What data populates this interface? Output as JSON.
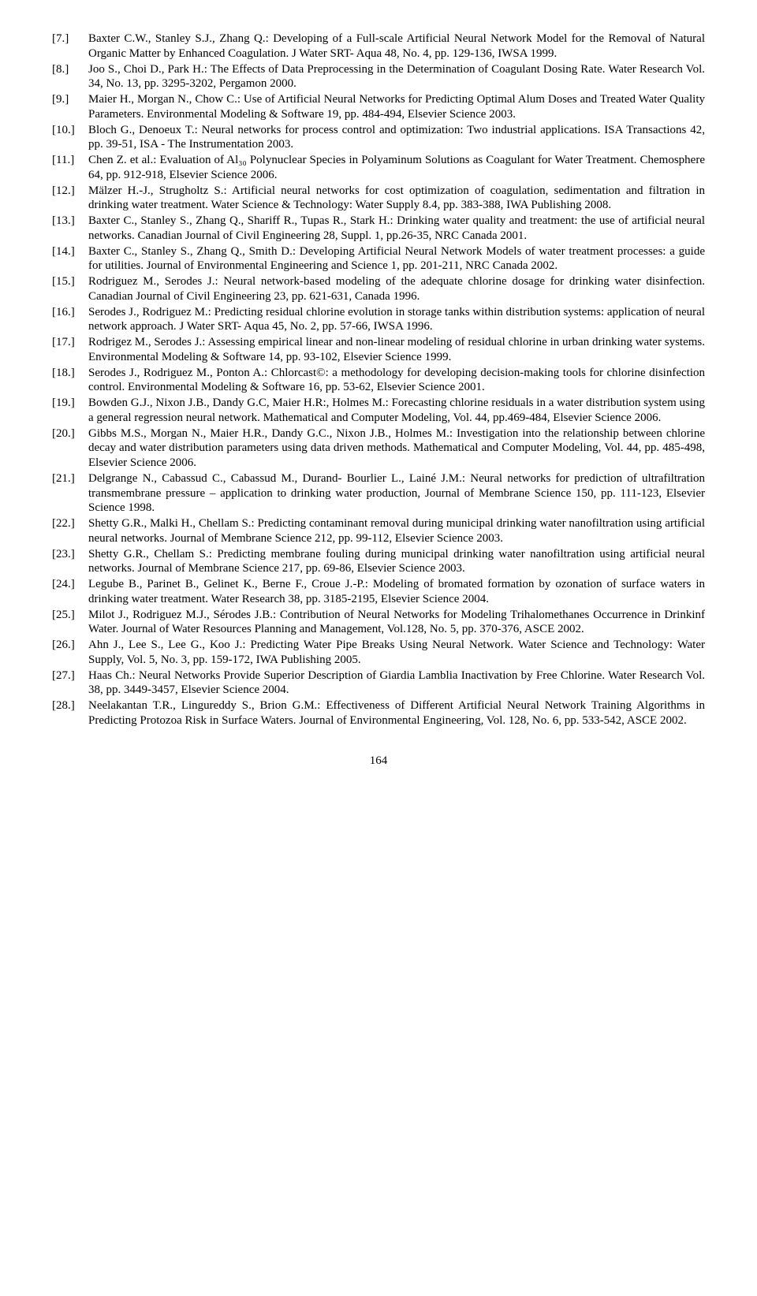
{
  "references": [
    {
      "num": "[7.]",
      "body": "Baxter C.W., Stanley S.J., Zhang Q.: Developing of a Full-scale Artificial Neural Network Model for the Removal of Natural Organic Matter by Enhanced Coagulation. J Water SRT- Aqua 48, No. 4, pp. 129-136, IWSA 1999."
    },
    {
      "num": "[8.]",
      "body": "Joo S., Choi D., Park H.: The Effects of Data Preprocessing in the Determination of Coagulant Dosing Rate. Water Research Vol. 34, No. 13, pp. 3295-3202, Pergamon 2000."
    },
    {
      "num": "[9.]",
      "body": "Maier H., Morgan N., Chow C.: Use of Artificial Neural Networks for Predicting Optimal Alum Doses and Treated Water Quality Parameters. Environmental Modeling & Software 19, pp. 484-494, Elsevier Science 2003."
    },
    {
      "num": "[10.]",
      "body": "Bloch G., Denoeux T.: Neural networks for process control and optimization: Two industrial applications. ISA Transactions 42, pp. 39-51, ISA - The Instrumentation 2003."
    },
    {
      "num": "[11.]",
      "body": "Chen Z. et al.: Evaluation of Al₃₀ Polynuclear Species in Polyaminum Solutions as Coagulant for Water Treatment. Chemosphere 64, pp. 912-918, Elsevier Science 2006."
    },
    {
      "num": "[12.]",
      "body": "Mälzer H.-J., Strugholtz S.: Artificial neural networks for cost optimization of coagulation, sedimentation and filtration in drinking water treatment. Water Science & Technology: Water Supply 8.4, pp. 383-388, IWA Publishing 2008."
    },
    {
      "num": "[13.]",
      "body": "Baxter C., Stanley S., Zhang Q., Shariff R., Tupas R., Stark H.: Drinking water quality and treatment: the use of artificial neural networks. Canadian Journal of Civil Engineering 28, Suppl. 1, pp.26-35, NRC Canada 2001."
    },
    {
      "num": "[14.]",
      "body": "Baxter C., Stanley S., Zhang Q., Smith D.: Developing Artificial Neural Network Models of water treatment processes: a guide for utilities. Journal of Environmental Engineering and Science 1, pp. 201-211, NRC Canada 2002."
    },
    {
      "num": "[15.]",
      "body": "Rodriguez M., Serodes J.: Neural network-based modeling of the adequate chlorine dosage for drinking water disinfection. Canadian Journal of Civil Engineering 23, pp. 621-631, Canada 1996."
    },
    {
      "num": "[16.]",
      "body": "Serodes J., Rodriguez M.: Predicting residual chlorine evolution in storage tanks within distribution systems: application of neural network approach. J Water SRT- Aqua 45, No. 2, pp. 57-66, IWSA 1996."
    },
    {
      "num": "[17.]",
      "body": "Rodrigez M., Serodes J.: Assessing empirical linear and non-linear modeling of residual chlorine in urban drinking water systems. Environmental Modeling & Software 14, pp. 93-102, Elsevier Science 1999."
    },
    {
      "num": "[18.]",
      "body": "Serodes J., Rodriguez M., Ponton A.: Chlorcast©: a methodology for developing decision-making tools for chlorine disinfection control. Environmental Modeling & Software 16, pp. 53-62, Elsevier Science 2001."
    },
    {
      "num": "[19.]",
      "body": "Bowden G.J., Nixon J.B., Dandy G.C, Maier H.R:, Holmes M.: Forecasting chlorine residuals in a water distribution system using a general regression neural network. Mathematical and Computer Modeling, Vol. 44, pp.469-484, Elsevier Science 2006."
    },
    {
      "num": "[20.]",
      "body": "Gibbs M.S., Morgan N., Maier H.R., Dandy G.C., Nixon J.B., Holmes M.: Investigation into the relationship between chlorine decay and water distribution parameters using data driven methods. Mathematical and Computer Modeling, Vol. 44, pp. 485-498, Elsevier Science 2006."
    },
    {
      "num": "[21.]",
      "body": "Delgrange N., Cabassud C., Cabassud M., Durand- Bourlier L., Lainé J.M.: Neural networks for prediction of ultrafiltration transmembrane pressure – application to drinking water production, Journal of Membrane Science 150, pp. 111-123, Elsevier Science 1998."
    },
    {
      "num": "[22.]",
      "body": "Shetty G.R., Malki H., Chellam S.: Predicting contaminant removal during municipal drinking water nanofiltration using artificial neural networks. Journal of Membrane Science 212, pp. 99-112, Elsevier Science 2003."
    },
    {
      "num": "[23.]",
      "body": "Shetty G.R., Chellam S.: Predicting membrane fouling during municipal drinking water nanofiltration using artificial neural networks. Journal of Membrane Science 217, pp. 69-86, Elsevier Science 2003."
    },
    {
      "num": "[24.]",
      "body": "Legube B., Parinet B., Gelinet K., Berne F., Croue J.-P.: Modeling of bromated formation by ozonation of surface waters in drinking water treatment. Water Research 38, pp. 3185-2195, Elsevier Science 2004."
    },
    {
      "num": "[25.]",
      "body": "Milot J., Rodriguez M.J., Sérodes J.B.: Contribution of Neural Networks for Modeling Trihalomethanes Occurrence in Drinkinf Water. Journal of Water Resources Planning and Management, Vol.128, No. 5, pp. 370-376, ASCE 2002."
    },
    {
      "num": "[26.]",
      "body": "Ahn J., Lee S., Lee G., Koo J.: Predicting Water Pipe Breaks Using Neural Network. Water Science and Technology: Water Supply, Vol. 5, No. 3, pp. 159-172, IWA Publishing 2005."
    },
    {
      "num": "[27.]",
      "body": "Haas Ch.: Neural Networks Provide Superior Description of Giardia Lamblia Inactivation by Free Chlorine. Water Research Vol. 38, pp. 3449-3457, Elsevier Science 2004."
    },
    {
      "num": "[28.]",
      "body": "Neelakantan T.R., Lingureddy S., Brion G.M.: Effectiveness of Different Artificial Neural Network Training Algorithms in Predicting Protozoa Risk in Surface Waters. Journal of Environmental Engineering, Vol. 128, No. 6, pp. 533-542, ASCE 2002."
    }
  ],
  "page_number": "164"
}
